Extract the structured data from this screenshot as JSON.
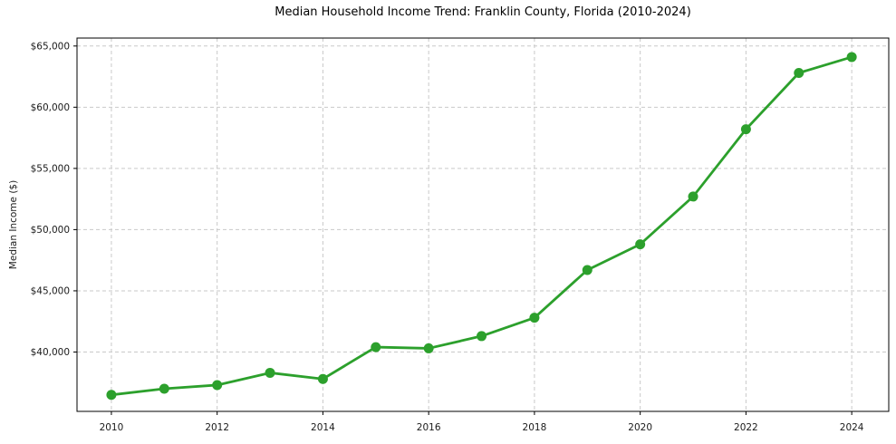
{
  "figure": {
    "title": "Median Household Income Trend: Franklin County, Florida (2010-2024)",
    "background": "#ffffff"
  },
  "chart_data": {
    "type": "line",
    "title": "Median Household Income Trend: Franklin County, Florida (2010-2024)",
    "xlabel": "",
    "ylabel": "Median Income ($)",
    "x": [
      2010,
      2011,
      2012,
      2013,
      2014,
      2015,
      2016,
      2017,
      2018,
      2019,
      2020,
      2021,
      2022,
      2023,
      2024
    ],
    "series": [
      {
        "name": "Median Household Income",
        "values": [
          36500,
          37000,
          37300,
          38300,
          37800,
          40400,
          40300,
          41300,
          42800,
          46700,
          48800,
          52700,
          58200,
          62800,
          64100
        ]
      }
    ],
    "xlim": [
      2009.35,
      2024.7
    ],
    "ylim": [
      35150,
      65650
    ],
    "x_ticks": [
      2010,
      2012,
      2014,
      2016,
      2018,
      2020,
      2022,
      2024
    ],
    "x_tick_labels": [
      "2010",
      "2012",
      "2014",
      "2016",
      "2018",
      "2020",
      "2022",
      "2024"
    ],
    "y_ticks": [
      40000,
      45000,
      50000,
      55000,
      60000,
      65000
    ],
    "y_tick_labels": [
      "$40,000",
      "$45,000",
      "$50,000",
      "$55,000",
      "$60,000",
      "$65,000"
    ],
    "grid": true,
    "grid_style": "dashed",
    "legend": "none",
    "line_color": "#2ca02c",
    "marker": "circle",
    "marker_color": "#2ca02c",
    "grid_color": "#c9c9c9",
    "axis_color": "#000000",
    "text_color": "#1a1a1a"
  }
}
